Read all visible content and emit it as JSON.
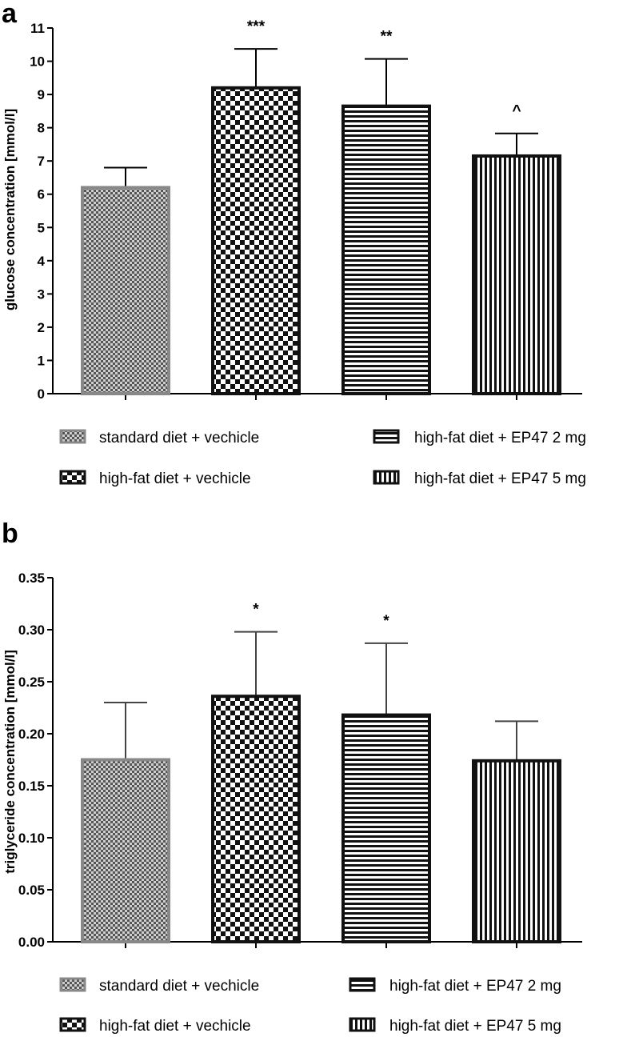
{
  "chart_data": [
    {
      "panel": "a",
      "type": "bar",
      "categories": [
        "standard diet + vechicle",
        "high-fat diet + vechicle",
        "high-fat diet + EP47 2 mg",
        "high-fat diet + EP47 5 mg"
      ],
      "values": [
        6.2,
        9.2,
        8.65,
        7.15
      ],
      "errors": [
        0.6,
        1.17,
        1.42,
        0.68
      ],
      "annotations": [
        "",
        "***",
        "**",
        "^"
      ],
      "ylabel": "glucose concentration [mmol/l]",
      "ylim": [
        0,
        11
      ],
      "yticks": [
        "0",
        "1",
        "2",
        "3",
        "4",
        "5",
        "6",
        "7",
        "8",
        "9",
        "10",
        "11"
      ],
      "legend": [
        "standard diet + vechicle",
        "high-fat diet + vechicle",
        "high-fat diet + EP47 2 mg",
        "high-fat diet + EP47 5 mg"
      ],
      "legend_position": "bottom",
      "grid": false
    },
    {
      "panel": "b",
      "type": "bar",
      "categories": [
        "standard diet + vechicle",
        "high-fat diet + vechicle",
        "high-fat diet + EP47 2 mg",
        "high-fat diet + EP47 5 mg"
      ],
      "values": [
        0.175,
        0.236,
        0.218,
        0.174
      ],
      "errors": [
        0.055,
        0.062,
        0.069,
        0.038
      ],
      "annotations": [
        "",
        "*",
        "*",
        ""
      ],
      "ylabel": "triglyceride concentration [mmol/l]",
      "ylim": [
        0,
        0.35
      ],
      "yticks": [
        "0.00",
        "0.05",
        "0.10",
        "0.15",
        "0.20",
        "0.25",
        "0.30",
        "0.35"
      ],
      "legend": [
        "standard diet + vechicle",
        "high-fat diet + vechicle",
        "high-fat diet + EP47 2 mg",
        "high-fat diet + EP47 5 mg"
      ],
      "legend_position": "bottom",
      "grid": false
    }
  ],
  "colors": {
    "standard_fill_dark": "#555555",
    "standard_fill_light": "#cfcfcf",
    "standard_border": "#888888",
    "bar_border": "#111111",
    "pattern_light": "#ffffff",
    "axis": "#000000",
    "error_bar_a": "#000000",
    "error_bar_b": "#444444"
  },
  "patterns": [
    "fine-check",
    "coarse-check",
    "horizontal-stripes",
    "vertical-stripes"
  ]
}
